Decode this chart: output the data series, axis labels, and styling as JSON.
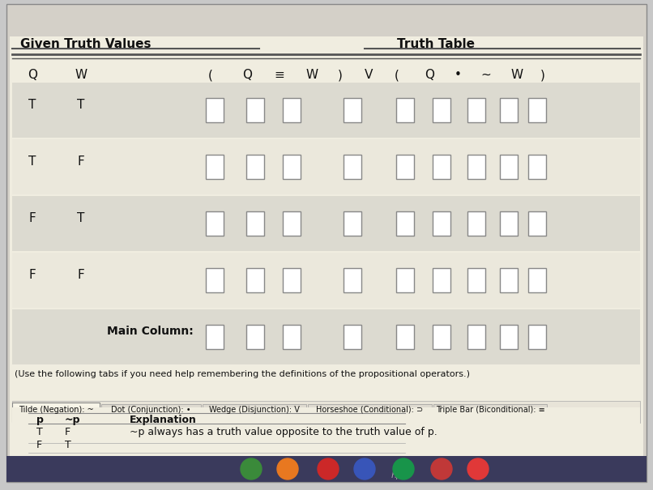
{
  "bg_color": "#c8c8c8",
  "screen_bg": "#d4d0c8",
  "page_bg": "#f0ede0",
  "table_header_bg": "#f0ede0",
  "row_alt_bg": "#dcdad0",
  "row_plain_bg": "#ebe8dc",
  "title_given": "Given Truth Values",
  "title_truth": "Truth Table",
  "col_headers_given": [
    "Q",
    "W"
  ],
  "col_headers_truth": [
    "(",
    "Q",
    "≡",
    "W",
    ")",
    "V",
    "(",
    "Q",
    "•",
    "~",
    "W",
    ")"
  ],
  "rows": [
    [
      "T",
      "T"
    ],
    [
      "T",
      "F"
    ],
    [
      "F",
      "T"
    ],
    [
      "F",
      "F"
    ],
    [
      "Main Column:"
    ]
  ],
  "note_text": "(Use the following tabs if you need help remembering the definitions of the propositional operators.)",
  "tabs": [
    "Tilde (Negation): ~",
    "Dot (Conjunction): •",
    "Wedge (Disjunction): V",
    "Horseshoe (Conditional): ⊃",
    "Triple Bar (Biconditional): ≡"
  ],
  "active_tab": 0,
  "inner_table_headers": [
    "p",
    "~p",
    "Explanation"
  ],
  "inner_rows": [
    [
      "T",
      "F",
      "~p always has a truth value opposite to the truth value of p."
    ],
    [
      "F",
      "T",
      ""
    ]
  ],
  "taskbar_bg": "#3a3a5c",
  "taskbar_icons_colors": [
    "#4a7a4a",
    "#f0a020",
    "#c03030",
    "#4060c0",
    "#20a060",
    "#c04040"
  ]
}
